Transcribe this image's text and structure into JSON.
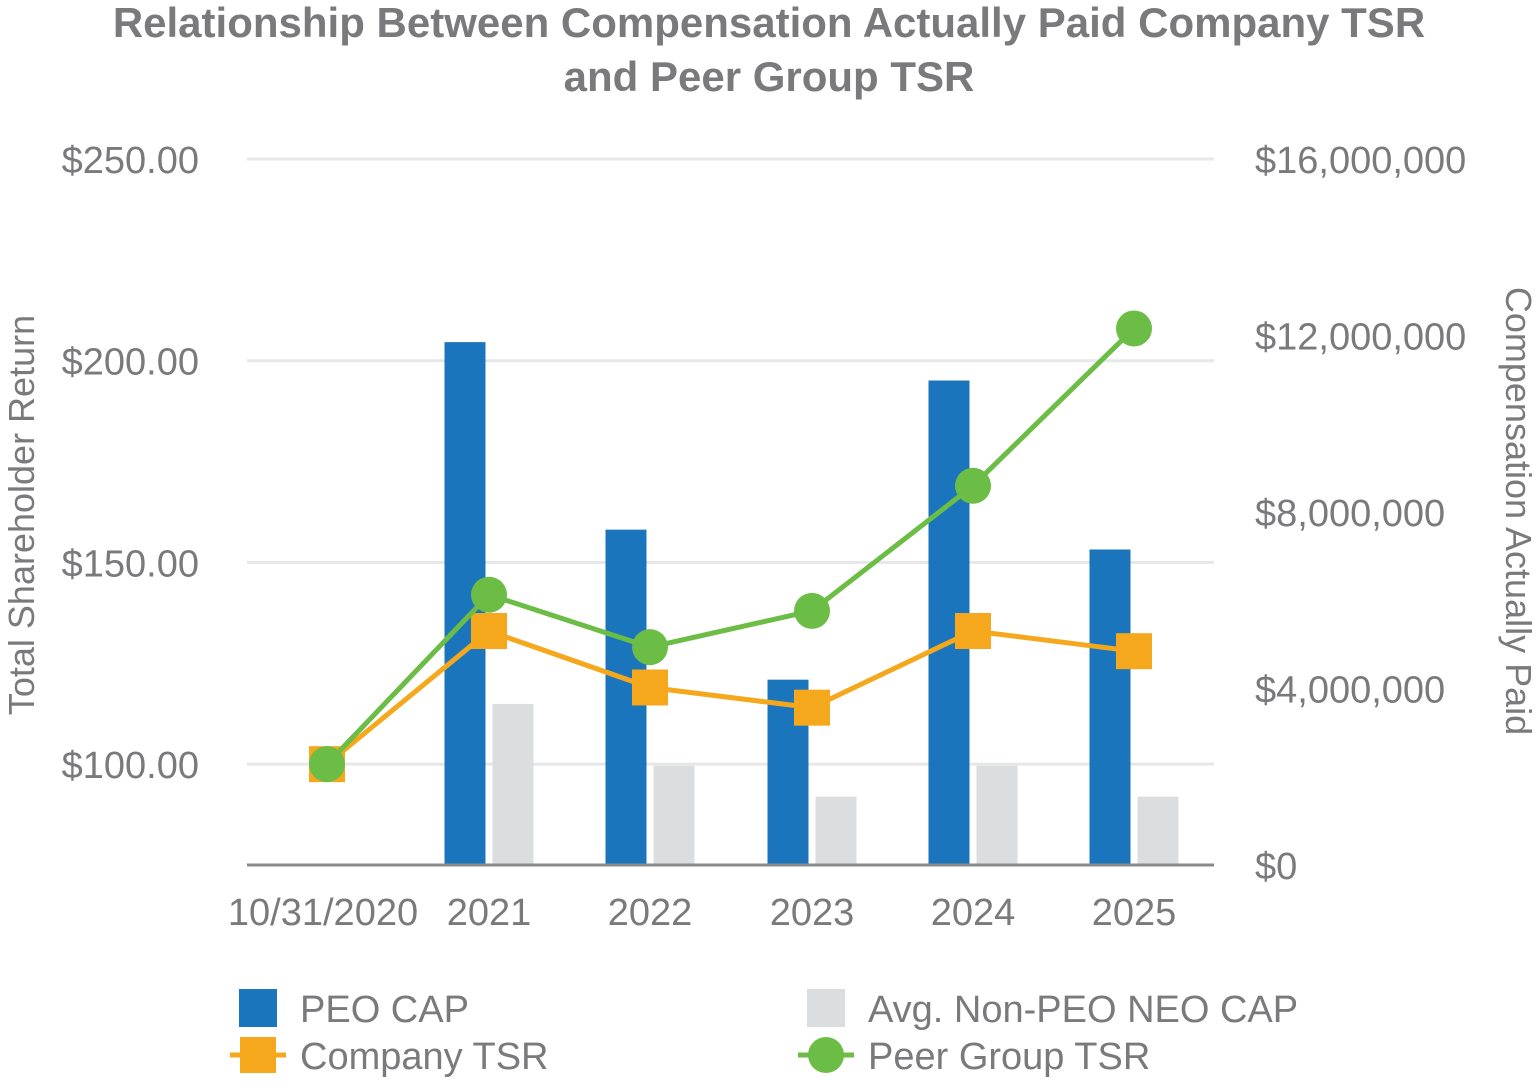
{
  "chart_data": {
    "type": "bar+line",
    "title_lines": [
      "Relationship Between Compensation Actually Paid Company TSR",
      "and Peer Group TSR"
    ],
    "categories": [
      "10/31/2020",
      "2021",
      "2022",
      "2023",
      "2024",
      "2025"
    ],
    "left_axis": {
      "label": "Total Shareholder Return",
      "range": [
        75,
        250
      ],
      "ticks": [
        100,
        150,
        200,
        250
      ],
      "tick_labels": [
        "$100.00",
        "$150.00",
        "$200.00",
        "$250.00"
      ],
      "gridlines": true
    },
    "right_axis": {
      "label": "Compensation Actually Paid",
      "range": [
        0,
        16000000
      ],
      "ticks": [
        0,
        4000000,
        8000000,
        12000000,
        16000000
      ],
      "tick_labels": [
        "$0",
        "$4,000,000",
        "$8,000,000",
        "$12,000,000",
        "$16,000,000"
      ]
    },
    "bar_series": [
      {
        "name": "PEO CAP",
        "axis": "right",
        "color": "#1b75bc",
        "values": [
          null,
          11850000,
          7600000,
          4200000,
          10980000,
          7150000
        ]
      },
      {
        "name": "Avg. Non-PEO NEO CAP",
        "axis": "right",
        "color": "#dcddde",
        "values": [
          null,
          3650000,
          2250000,
          1550000,
          2250000,
          1550000
        ]
      }
    ],
    "line_series": [
      {
        "name": "Company TSR",
        "axis": "left",
        "color": "#f5a81c",
        "marker": "square",
        "values": [
          100.0,
          133.0,
          119.0,
          114.0,
          133.0,
          128.0
        ]
      },
      {
        "name": "Peer Group TSR",
        "axis": "left",
        "color": "#6cbd45",
        "marker": "circle",
        "values": [
          100.0,
          142.0,
          129.0,
          138.0,
          169.0,
          208.0
        ]
      }
    ],
    "legend": {
      "position": "bottom",
      "items": [
        "PEO CAP",
        "Avg. Non-PEO NEO CAP",
        "Company TSR",
        "Peer Group TSR"
      ]
    }
  },
  "colors": {
    "axis_text": "#7a7a7d",
    "gridline": "#e6e7e8",
    "baseline": "#8a8a8d"
  }
}
